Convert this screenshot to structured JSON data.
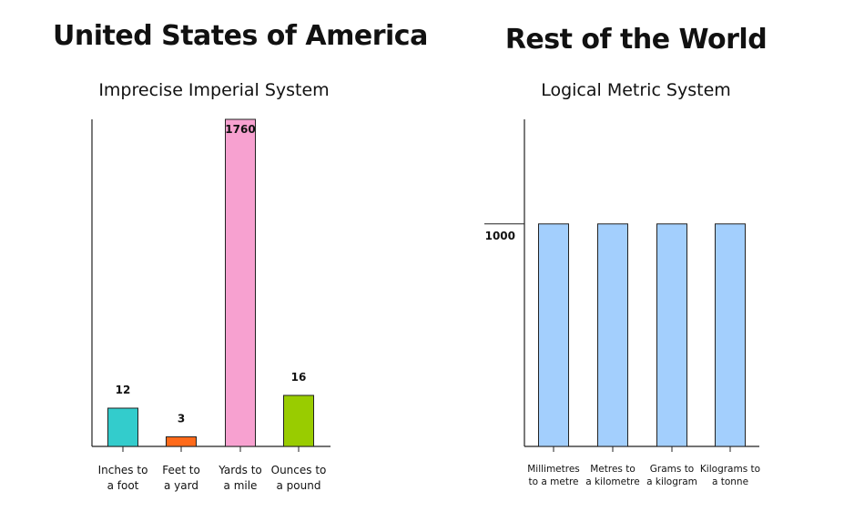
{
  "chart_data": [
    {
      "type": "bar",
      "title": "United States of America",
      "subtitle": "Imprecise Imperial System",
      "categories": [
        "Inches to a foot",
        "Feet to a yard",
        "Yards to a mile",
        "Ounces to a pound"
      ],
      "category_lines": [
        [
          "Inches to",
          "a foot"
        ],
        [
          "Feet to",
          "a yard"
        ],
        [
          "Yards to",
          "a mile"
        ],
        [
          "Ounces to",
          "a pound"
        ]
      ],
      "values": [
        12,
        3,
        1760,
        16
      ],
      "value_labels": [
        "12",
        "3",
        "1760",
        "16"
      ],
      "colors": [
        "#33cccc",
        "#ff6a1a",
        "#f7a1d0",
        "#99cc00"
      ],
      "grid": false,
      "legend": "none"
    },
    {
      "type": "bar",
      "title": "Rest of the World",
      "subtitle": "Logical Metric System",
      "categories": [
        "Millimetres to a metre",
        "Metres to a kilometre",
        "Grams to a kilogram",
        "Kilograms to a tonne"
      ],
      "category_lines": [
        [
          "Millimetres",
          "to a metre"
        ],
        [
          "Metres to",
          "a kilometre"
        ],
        [
          "Grams to",
          "a kilogram"
        ],
        [
          "Kilograms to",
          "a tonne"
        ]
      ],
      "values": [
        1000,
        1000,
        1000,
        1000
      ],
      "y_tick_label": "1000",
      "colors": [
        "#a3cffd",
        "#a3cffd",
        "#a3cffd",
        "#a3cffd"
      ],
      "grid": false,
      "legend": "none"
    }
  ]
}
